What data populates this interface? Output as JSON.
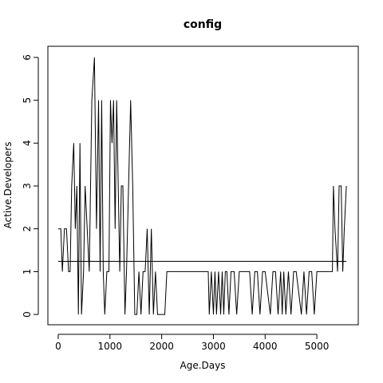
{
  "chart_data": {
    "type": "line",
    "title": "config",
    "xlabel": "Age.Days",
    "ylabel": "Active.Developers",
    "x": [
      0,
      50,
      80,
      120,
      160,
      200,
      230,
      260,
      300,
      330,
      360,
      390,
      420,
      450,
      490,
      520,
      560,
      600,
      650,
      700,
      740,
      780,
      810,
      840,
      870,
      900,
      940,
      980,
      1010,
      1040,
      1070,
      1100,
      1130,
      1160,
      1190,
      1220,
      1250,
      1290,
      1320,
      1360,
      1400,
      1440,
      1480,
      1520,
      1560,
      1600,
      1640,
      1680,
      1720,
      1760,
      1800,
      1840,
      1880,
      1920,
      1960,
      2000,
      2060,
      2100,
      2900,
      2920,
      2960,
      3000,
      3030,
      3060,
      3100,
      3140,
      3170,
      3200,
      3230,
      3260,
      3300,
      3340,
      3400,
      3450,
      3500,
      3700,
      3750,
      3800,
      3850,
      3900,
      3950,
      4000,
      4100,
      4150,
      4200,
      4250,
      4300,
      4330,
      4360,
      4400,
      4450,
      4500,
      4550,
      4600,
      4700,
      4750,
      4800,
      4850,
      4900,
      4950,
      5000,
      5050,
      5300,
      5320,
      5350,
      5400,
      5430,
      5470,
      5500,
      5530,
      5570
    ],
    "values": [
      2,
      2,
      1,
      2,
      2,
      1,
      1,
      3,
      4,
      2,
      3,
      0,
      4,
      0,
      1,
      3,
      2,
      1,
      5,
      6,
      2,
      5,
      1,
      5,
      1,
      0,
      1,
      1,
      5,
      4,
      5,
      2,
      5,
      3,
      1,
      3,
      3,
      0,
      1,
      3,
      5,
      3,
      0,
      0,
      1,
      0,
      1,
      1,
      2,
      0,
      2,
      0,
      1,
      0,
      0,
      0,
      0,
      1,
      1,
      0,
      1,
      0,
      1,
      0,
      1,
      0,
      1,
      0,
      1,
      1,
      0,
      1,
      1,
      0,
      1,
      1,
      0,
      1,
      1,
      0,
      1,
      1,
      0,
      1,
      1,
      0,
      1,
      0,
      1,
      0,
      1,
      0,
      1,
      1,
      0,
      1,
      0,
      1,
      1,
      0,
      1,
      1,
      1,
      3,
      2,
      1,
      3,
      3,
      1,
      2,
      3
    ],
    "color": "#000000",
    "hline": 1.24,
    "xlim": [
      -200,
      5800
    ],
    "ylim": [
      -0.24,
      6.26
    ],
    "xticks": [
      0,
      1000,
      2000,
      3000,
      4000,
      5000
    ],
    "yticks": [
      0,
      1,
      2,
      3,
      4,
      5,
      6
    ]
  }
}
